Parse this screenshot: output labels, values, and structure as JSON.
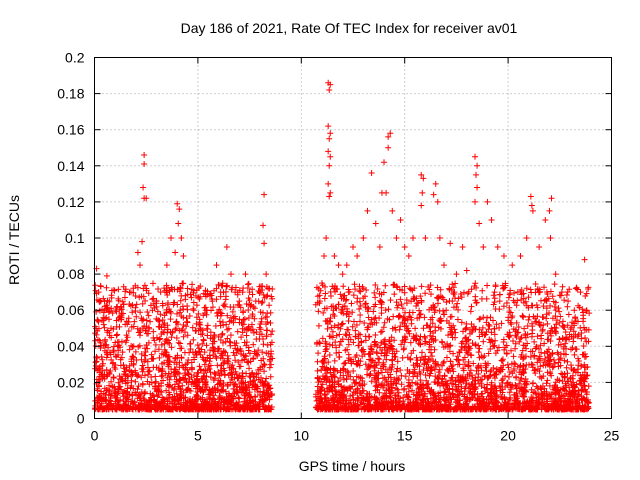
{
  "chart_data": {
    "type": "scatter",
    "title": "Day 186 of 2021, Rate Of TEC Index for receiver av01",
    "xlabel": "GPS time / hours",
    "ylabel": "ROTI / TECUs",
    "xlim": [
      0,
      25
    ],
    "ylim": [
      0,
      0.2
    ],
    "x_ticks": [
      0,
      5,
      10,
      15,
      20,
      25
    ],
    "x_tick_labels": [
      "0",
      "5",
      "10",
      "15",
      "20",
      "25"
    ],
    "y_ticks": [
      0,
      0.02,
      0.04,
      0.06,
      0.08,
      0.1,
      0.12,
      0.14,
      0.16,
      0.18,
      0.2
    ],
    "y_tick_labels": [
      "0",
      "0.02",
      "0.04",
      "0.06",
      "0.08",
      "0.1",
      "0.12",
      "0.14",
      "0.16",
      "0.18",
      "0.2"
    ],
    "grid": true,
    "marker": "+",
    "color": "#ff0000",
    "data_gaps_hours": [
      [
        8.6,
        10.7
      ]
    ],
    "series": [
      {
        "points": [
          [
            0.1,
            0.083
          ],
          [
            0.2,
            0.07
          ],
          [
            0.3,
            0.065
          ],
          [
            0.5,
            0.06
          ],
          [
            0.7,
            0.055
          ],
          [
            0.6,
            0.079
          ],
          [
            0.8,
            0.05
          ],
          [
            1.1,
            0.062
          ],
          [
            1.3,
            0.055
          ],
          [
            1.6,
            0.045
          ],
          [
            1.9,
            0.04
          ],
          [
            2.1,
            0.092
          ],
          [
            2.2,
            0.085
          ],
          [
            2.4,
            0.146
          ],
          [
            2.4,
            0.141
          ],
          [
            2.35,
            0.128
          ],
          [
            2.4,
            0.122
          ],
          [
            2.5,
            0.122
          ],
          [
            2.3,
            0.098
          ],
          [
            2.5,
            0.072
          ],
          [
            2.8,
            0.06
          ],
          [
            3.0,
            0.065
          ],
          [
            3.2,
            0.07
          ],
          [
            3.5,
            0.085
          ],
          [
            3.7,
            0.1
          ],
          [
            3.9,
            0.092
          ],
          [
            4.0,
            0.119
          ],
          [
            4.1,
            0.116
          ],
          [
            4.05,
            0.108
          ],
          [
            4.2,
            0.1
          ],
          [
            4.3,
            0.09
          ],
          [
            4.5,
            0.072
          ],
          [
            4.8,
            0.06
          ],
          [
            5.1,
            0.05
          ],
          [
            5.4,
            0.06
          ],
          [
            5.7,
            0.065
          ],
          [
            5.9,
            0.085
          ],
          [
            6.1,
            0.07
          ],
          [
            6.4,
            0.095
          ],
          [
            6.6,
            0.08
          ],
          [
            6.8,
            0.07
          ],
          [
            7.0,
            0.065
          ],
          [
            7.3,
            0.08
          ],
          [
            7.5,
            0.07
          ],
          [
            7.8,
            0.065
          ],
          [
            8.0,
            0.07
          ],
          [
            8.2,
            0.124
          ],
          [
            8.15,
            0.107
          ],
          [
            8.2,
            0.097
          ],
          [
            8.3,
            0.08
          ],
          [
            8.4,
            0.072
          ],
          [
            10.7,
            0.063
          ],
          [
            10.9,
            0.065
          ],
          [
            11.0,
            0.075
          ],
          [
            11.1,
            0.09
          ],
          [
            11.2,
            0.1
          ],
          [
            11.3,
            0.186
          ],
          [
            11.4,
            0.185
          ],
          [
            11.35,
            0.182
          ],
          [
            11.3,
            0.162
          ],
          [
            11.4,
            0.158
          ],
          [
            11.35,
            0.155
          ],
          [
            11.3,
            0.148
          ],
          [
            11.4,
            0.145
          ],
          [
            11.35,
            0.14
          ],
          [
            11.3,
            0.13
          ],
          [
            11.4,
            0.125
          ],
          [
            11.35,
            0.123
          ],
          [
            11.6,
            0.09
          ],
          [
            11.8,
            0.085
          ],
          [
            12.0,
            0.08
          ],
          [
            12.2,
            0.085
          ],
          [
            12.5,
            0.095
          ],
          [
            12.7,
            0.09
          ],
          [
            13.0,
            0.1
          ],
          [
            13.2,
            0.115
          ],
          [
            13.4,
            0.136
          ],
          [
            13.6,
            0.108
          ],
          [
            13.8,
            0.095
          ],
          [
            13.9,
            0.125
          ],
          [
            14.0,
            0.142
          ],
          [
            14.2,
            0.15
          ],
          [
            14.3,
            0.158
          ],
          [
            14.2,
            0.156
          ],
          [
            14.1,
            0.125
          ],
          [
            14.4,
            0.115
          ],
          [
            14.6,
            0.1
          ],
          [
            14.8,
            0.11
          ],
          [
            15.0,
            0.095
          ],
          [
            15.2,
            0.09
          ],
          [
            15.4,
            0.1
          ],
          [
            15.8,
            0.135
          ],
          [
            15.9,
            0.133
          ],
          [
            15.85,
            0.125
          ],
          [
            15.8,
            0.118
          ],
          [
            16.0,
            0.1
          ],
          [
            16.4,
            0.124
          ],
          [
            16.5,
            0.13
          ],
          [
            16.6,
            0.12
          ],
          [
            16.7,
            0.1
          ],
          [
            16.9,
            0.085
          ],
          [
            17.2,
            0.097
          ],
          [
            17.5,
            0.08
          ],
          [
            17.8,
            0.095
          ],
          [
            18.0,
            0.082
          ],
          [
            18.4,
            0.145
          ],
          [
            18.5,
            0.14
          ],
          [
            18.45,
            0.135
          ],
          [
            18.5,
            0.128
          ],
          [
            18.4,
            0.12
          ],
          [
            18.6,
            0.108
          ],
          [
            18.8,
            0.095
          ],
          [
            19.0,
            0.12
          ],
          [
            19.2,
            0.11
          ],
          [
            19.5,
            0.095
          ],
          [
            19.8,
            0.09
          ],
          [
            20.2,
            0.085
          ],
          [
            20.6,
            0.09
          ],
          [
            20.9,
            0.1
          ],
          [
            21.1,
            0.123
          ],
          [
            21.15,
            0.118
          ],
          [
            21.2,
            0.115
          ],
          [
            21.5,
            0.095
          ],
          [
            21.8,
            0.11
          ],
          [
            22.0,
            0.115
          ],
          [
            22.1,
            0.122
          ],
          [
            22.05,
            0.1
          ],
          [
            22.3,
            0.08
          ],
          [
            22.6,
            0.07
          ],
          [
            22.9,
            0.065
          ],
          [
            23.2,
            0.06
          ],
          [
            23.5,
            0.07
          ],
          [
            23.7,
            0.088
          ],
          [
            23.8,
            0.06
          ]
        ]
      }
    ]
  }
}
